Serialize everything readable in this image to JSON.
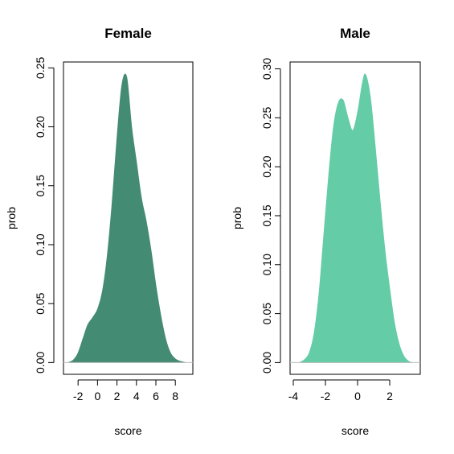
{
  "chart_data": [
    {
      "type": "area",
      "title": "Female",
      "xlabel": "score",
      "ylabel": "prob",
      "xlim": [
        -3.5,
        9.8
      ],
      "ylim": [
        -0.01,
        0.255
      ],
      "xticks": [
        -2,
        0,
        2,
        4,
        6,
        8
      ],
      "xtick_labels": [
        "-2",
        "0",
        "2",
        "4",
        "6",
        "8"
      ],
      "yticks": [
        0.0,
        0.05,
        0.1,
        0.15,
        0.2,
        0.25
      ],
      "ytick_labels": [
        "0.00",
        "0.05",
        "0.10",
        "0.15",
        "0.20",
        "0.25"
      ],
      "color": "#448B73",
      "series": [
        {
          "x": [
            -3.0,
            -2.5,
            -2.0,
            -1.5,
            -1.0,
            -0.5,
            0.0,
            0.5,
            1.0,
            1.5,
            2.0,
            2.5,
            3.0,
            3.5,
            4.0,
            4.5,
            5.0,
            5.5,
            6.0,
            6.5,
            7.0,
            7.5,
            8.0,
            8.5,
            9.0
          ],
          "y": [
            0.0,
            0.002,
            0.008,
            0.02,
            0.032,
            0.038,
            0.045,
            0.06,
            0.09,
            0.135,
            0.19,
            0.235,
            0.242,
            0.2,
            0.17,
            0.14,
            0.12,
            0.095,
            0.065,
            0.04,
            0.02,
            0.008,
            0.003,
            0.001,
            0.0
          ]
        }
      ],
      "grid": false
    },
    {
      "type": "area",
      "title": "Male",
      "xlabel": "score",
      "ylabel": "prob",
      "xlim": [
        -4.2,
        3.9
      ],
      "ylim": [
        -0.012,
        0.307
      ],
      "xticks": [
        -4,
        -2,
        0,
        2
      ],
      "xtick_labels": [
        "-4",
        "-2",
        "0",
        "2"
      ],
      "yticks": [
        0.0,
        0.05,
        0.1,
        0.15,
        0.2,
        0.25,
        0.3
      ],
      "ytick_labels": [
        "0.00",
        "0.05",
        "0.10",
        "0.15",
        "0.20",
        "0.25",
        "0.30"
      ],
      "color": "#64CCA6",
      "series": [
        {
          "x": [
            -3.6,
            -3.3,
            -3.0,
            -2.7,
            -2.4,
            -2.1,
            -1.8,
            -1.5,
            -1.2,
            -0.9,
            -0.6,
            -0.3,
            0.0,
            0.3,
            0.5,
            0.8,
            1.1,
            1.4,
            1.7,
            2.0,
            2.3,
            2.6,
            2.9,
            3.2,
            3.4
          ],
          "y": [
            0.0,
            0.003,
            0.01,
            0.03,
            0.07,
            0.13,
            0.19,
            0.24,
            0.265,
            0.268,
            0.25,
            0.237,
            0.255,
            0.285,
            0.294,
            0.27,
            0.22,
            0.165,
            0.115,
            0.075,
            0.04,
            0.018,
            0.006,
            0.001,
            0.0
          ]
        }
      ],
      "grid": false
    }
  ]
}
